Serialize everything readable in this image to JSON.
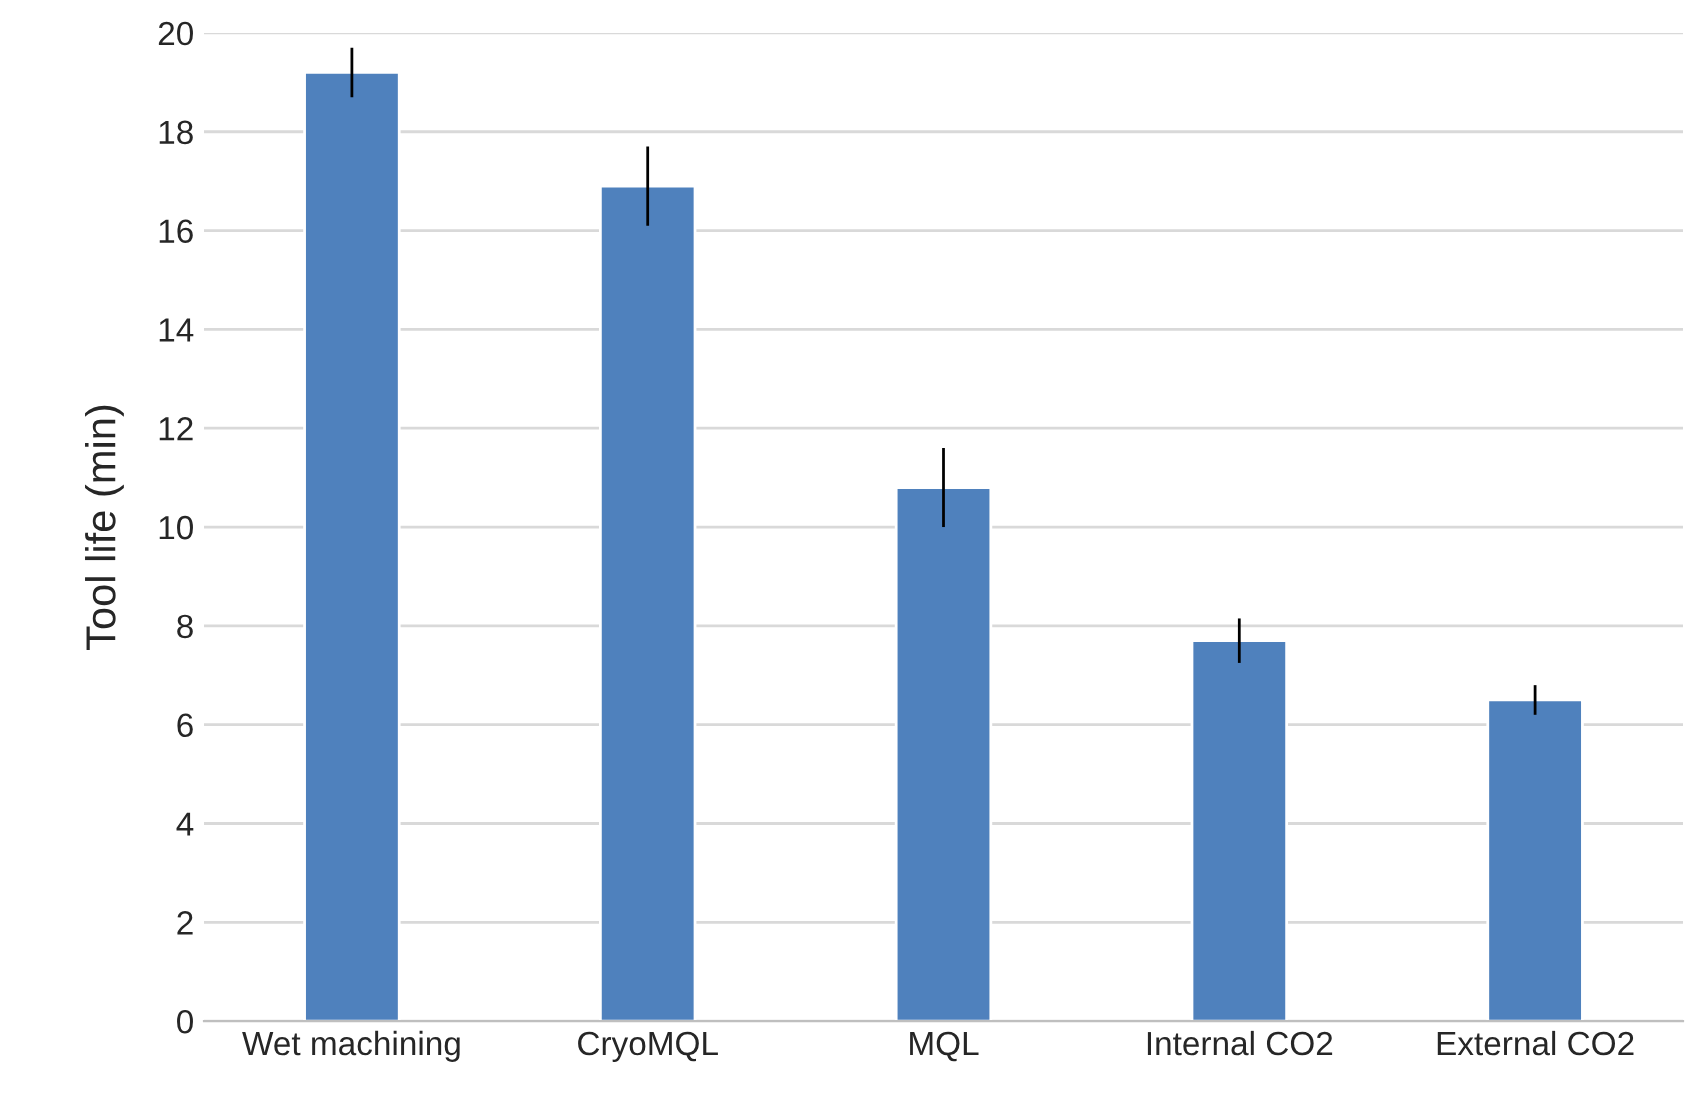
{
  "chart_data": {
    "type": "bar",
    "ylabel": "Tool life (min)",
    "categories": [
      "Wet machining",
      "CryoMQL",
      "MQL",
      "Internal CO2",
      "External CO2"
    ],
    "values": [
      19.2,
      16.9,
      10.8,
      7.7,
      6.5
    ],
    "errors": [
      0.5,
      0.8,
      0.8,
      0.45,
      0.3
    ],
    "color": "#4f81bd",
    "ylim": [
      0,
      20
    ],
    "yticks": [
      0,
      2,
      4,
      6,
      8,
      10,
      12,
      14,
      16,
      18,
      20
    ],
    "grid": "y"
  }
}
